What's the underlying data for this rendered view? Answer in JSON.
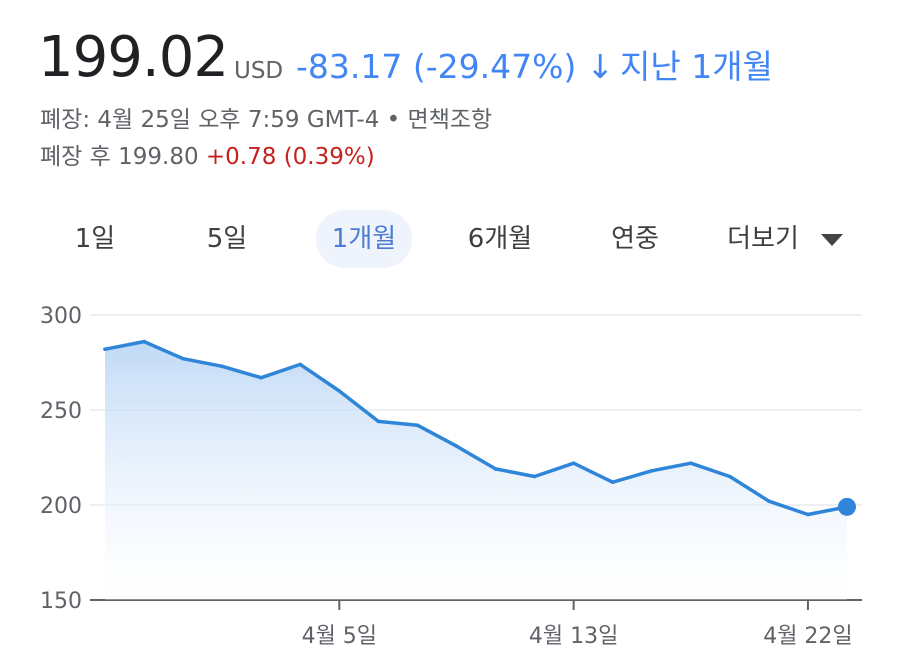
{
  "quote": {
    "price": "199.02",
    "currency": "USD",
    "change": "-83.17 (-29.47%)",
    "arrow": "↓",
    "period_label": "지난 1개월",
    "close_line": "폐장: 4월 25일 오후 7:59 GMT-4 • 면책조항",
    "after_hours_label": "폐장 후 199.80",
    "after_hours_change": "+0.78 (0.39%)",
    "colors": {
      "down": "#4285f4",
      "up": "#c5221f"
    }
  },
  "tabs": [
    {
      "label": "1일",
      "active": false
    },
    {
      "label": "5일",
      "active": false
    },
    {
      "label": "1개월",
      "active": true
    },
    {
      "label": "6개월",
      "active": false
    },
    {
      "label": "연중",
      "active": false
    },
    {
      "label": "더보기",
      "active": false,
      "icon": "caret-down-icon"
    }
  ],
  "chart_data": {
    "type": "area",
    "title": "",
    "xlabel": "",
    "ylabel": "",
    "ylim": [
      150,
      300
    ],
    "yticks": [
      300,
      250,
      200,
      150
    ],
    "grid": true,
    "x_ticks": [
      "4월 5일",
      "4월 13일",
      "4월 22일"
    ],
    "x_tick_index": [
      6,
      12,
      18
    ],
    "series": [
      {
        "color": "#2f86d8",
        "values": [
          282,
          286,
          277,
          273,
          267,
          274,
          260,
          244,
          242,
          231,
          219,
          215,
          222,
          212,
          218,
          222,
          215,
          202,
          195,
          199.02
        ]
      }
    ]
  }
}
